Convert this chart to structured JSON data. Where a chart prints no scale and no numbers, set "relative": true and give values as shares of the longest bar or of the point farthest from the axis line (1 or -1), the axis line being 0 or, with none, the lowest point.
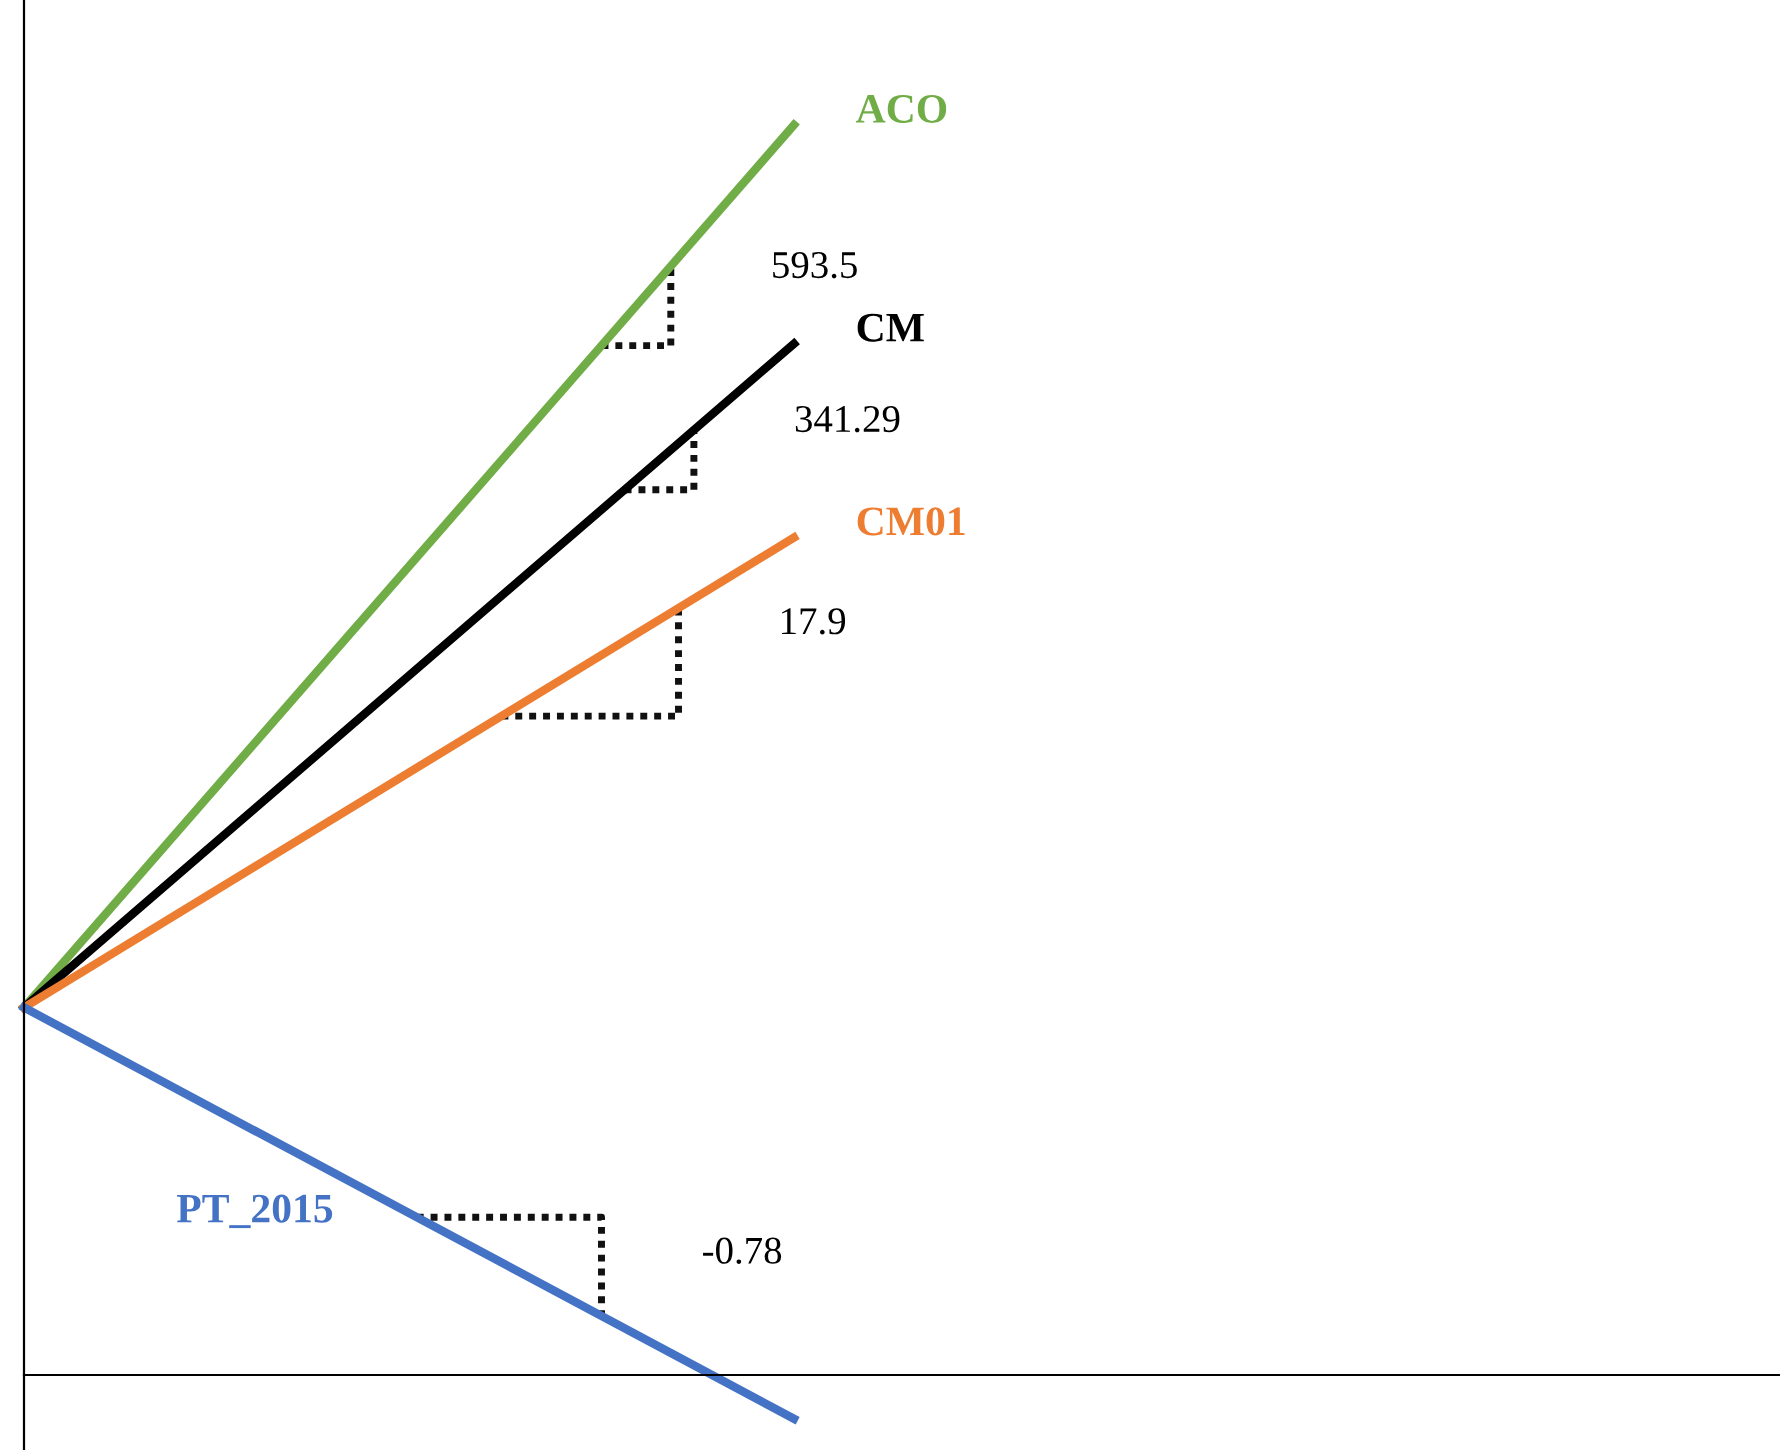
{
  "chart_data": {
    "type": "line",
    "relative": true,
    "categories": [
      null,
      null
    ],
    "series": [
      {
        "name": "ACO",
        "color": "#70ad47",
        "values": [
          0.294,
          1.0
        ]
      },
      {
        "name": "CM",
        "color": "#000000",
        "values": [
          0.294,
          0.825
        ]
      },
      {
        "name": "CM01",
        "color": "#ed7d31",
        "values": [
          0.294,
          0.67
        ]
      },
      {
        "name": "PT_2015",
        "color": "#4472c4",
        "values": [
          0.294,
          -0.035
        ]
      }
    ],
    "annotations": [
      "593.5",
      "341.29",
      "17.9",
      "-0.78"
    ],
    "grid": false,
    "legend": false,
    "marker": "none",
    "line_style": "solid"
  }
}
